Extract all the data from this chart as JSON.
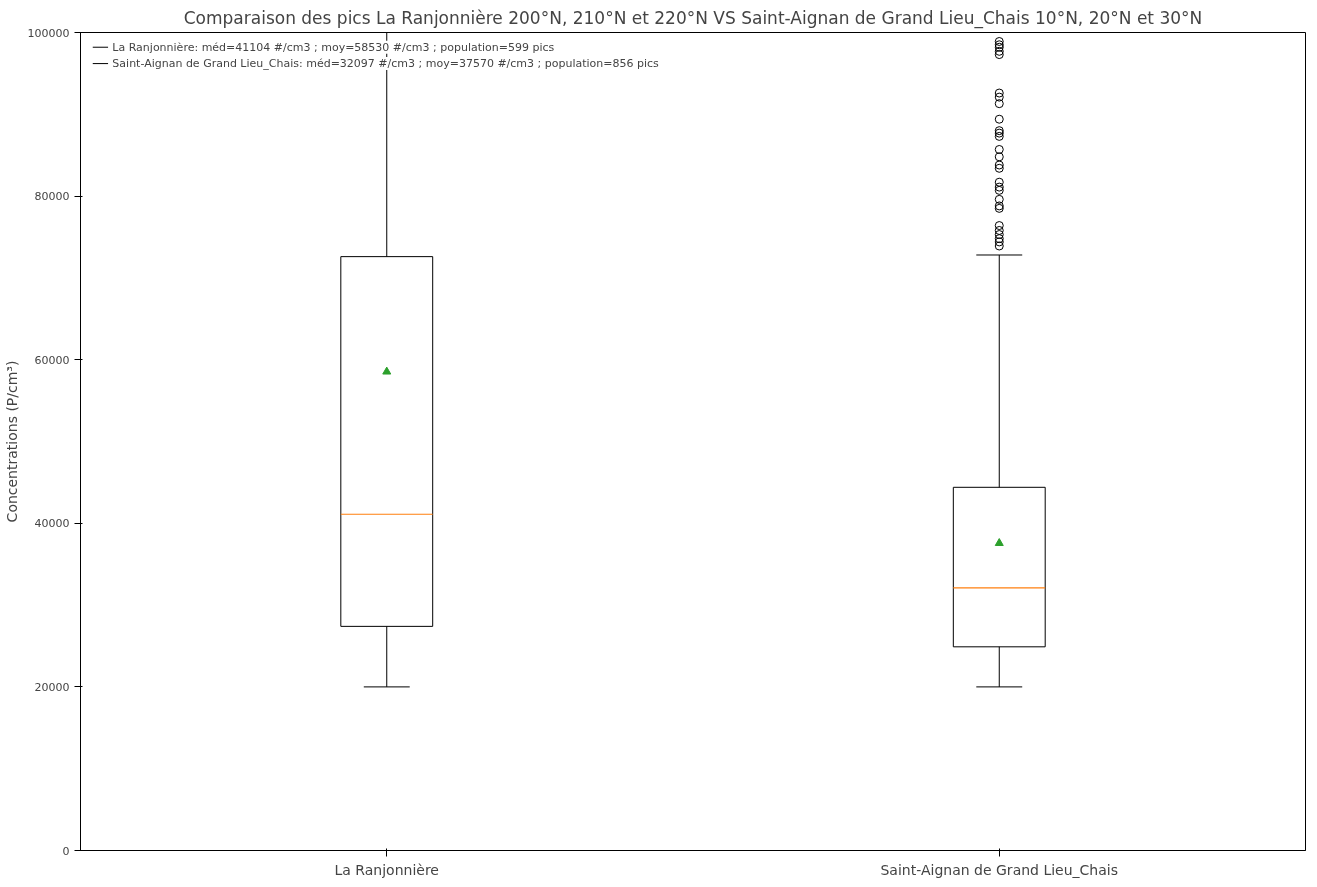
{
  "chart_data": {
    "type": "box",
    "title": "Comparaison des pics La Ranjonnière 200°N, 210°N et 220°N VS Saint-Aignan de Grand Lieu_Chais 10°N, 20°N et 30°N",
    "ylabel": "Concentrations (P/cm³)",
    "categories": [
      "La Ranjonnière",
      "Saint-Aignan de Grand Lieu_Chais"
    ],
    "boxes": [
      {
        "low": 20000,
        "q1": 27400,
        "median": 41104,
        "q3": 72600,
        "high": 100000,
        "mean": 58530
      },
      {
        "low": 20000,
        "q1": 24900,
        "median": 32097,
        "q3": 44400,
        "high": 72800,
        "mean": 37570,
        "outliers": [
          98900,
          98500,
          98200,
          97700,
          97300,
          92600,
          92100,
          91300,
          89400,
          88000,
          87700,
          87300,
          85700,
          84800,
          83800,
          83400,
          81700,
          81100,
          80700,
          79600,
          78800,
          78500,
          76400,
          75800,
          75300,
          74800,
          74400,
          73900
        ]
      }
    ],
    "annotations": [
      "La Ranjonnière: méd=41104 #/cm3 ; moy=58530 #/cm3 ; population=599 pics",
      "Saint-Aignan de Grand Lieu_Chais: méd=32097 #/cm3 ; moy=37570 #/cm3 ; population=856 pics"
    ],
    "ylim": [
      0,
      100000
    ],
    "yticks": [
      0,
      20000,
      40000,
      60000,
      80000,
      100000
    ],
    "grid": false
  }
}
